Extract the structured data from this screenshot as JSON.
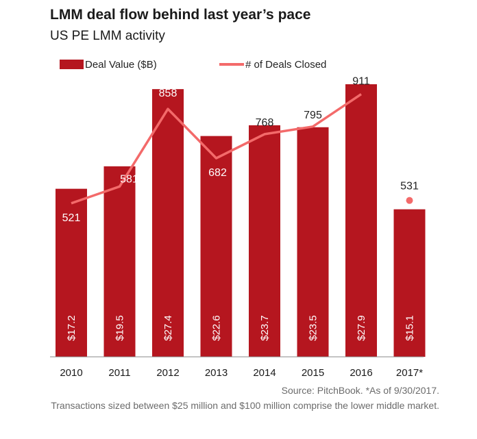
{
  "title": "LMM deal flow behind last year’s pace",
  "subtitle": "US PE LMM activity",
  "source": "Source: PitchBook. *As of 9/30/2017.",
  "note": "Transactions sized between $25 million and $100 million comprise the lower middle market.",
  "colors": {
    "bar": "#b5161f",
    "line": "#f36a6a",
    "axis": "#888888"
  },
  "chart_data": {
    "type": "bar",
    "categories": [
      "2010",
      "2011",
      "2012",
      "2013",
      "2014",
      "2015",
      "2016",
      "2017*"
    ],
    "series": [
      {
        "name": "Deal Value ($B)",
        "type": "bar",
        "values": [
          17.2,
          19.5,
          27.4,
          22.6,
          23.7,
          23.5,
          27.9,
          15.1
        ],
        "labels": [
          "$17.2",
          "$19.5",
          "$27.4",
          "$22.6",
          "$23.7",
          "$23.5",
          "$27.9",
          "$15.1"
        ]
      },
      {
        "name": "# of Deals Closed",
        "type": "line",
        "values": [
          521,
          581,
          858,
          682,
          768,
          795,
          911,
          531
        ],
        "labels": [
          "521",
          "581",
          "858",
          "682",
          "768",
          "795",
          "911",
          "531"
        ],
        "note": "2017* shown as separate point (not connected)"
      }
    ],
    "legend_placement": "top-left",
    "grid": false
  }
}
